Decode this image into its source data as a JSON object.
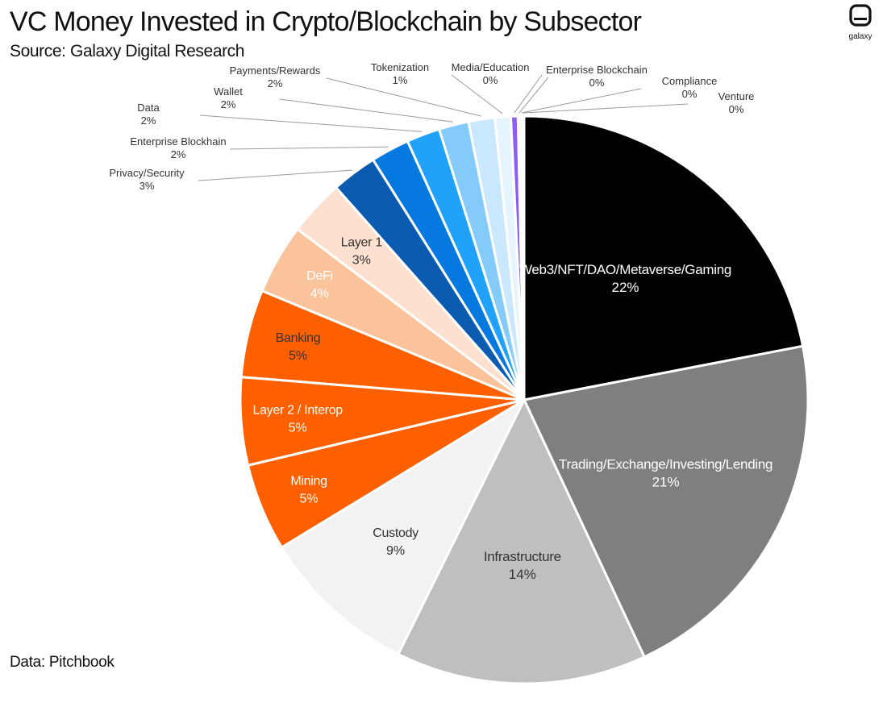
{
  "header": {
    "title": "VC Money Invested in Crypto/Blockchain by Subsector",
    "subtitle": "Source: Galaxy Digital Research"
  },
  "footer": {
    "note": "Data: Pitchbook"
  },
  "logo": {
    "text": "galaxy",
    "icon": "galaxy-logo-icon"
  },
  "chart_data": {
    "type": "pie",
    "title": "VC Money Invested in Crypto/Blockchain by Subsector",
    "subtitle": "Source: Galaxy Digital Research",
    "start_angle_deg": 0,
    "direction": "clockwise",
    "slices": [
      {
        "label": "Web3/NFT/DAO/Metaverse/Gaming",
        "display": "22%",
        "value": 22.0,
        "color": "#000000",
        "label_color": "#ffffff",
        "label_placement": "inside"
      },
      {
        "label": "Trading/Exchange/Investing/Lending",
        "display": "21%",
        "value": 21.1,
        "color": "#7f7f7f",
        "label_color": "#ffffff",
        "label_placement": "inside"
      },
      {
        "label": "Infrastructure",
        "display": "14%",
        "value": 14.3,
        "color": "#bfbfbf",
        "label_color": "#333333",
        "label_placement": "inside"
      },
      {
        "label": "Custody",
        "display": "9%",
        "value": 9.0,
        "color": "#f2f2f2",
        "label_color": "#333333",
        "label_placement": "inside"
      },
      {
        "label": "Mining",
        "display": "5%",
        "value": 5.0,
        "color": "#fe6000",
        "label_color": "#ffffff",
        "label_placement": "inside"
      },
      {
        "label": "Layer 2 / Interop",
        "display": "5%",
        "value": 5.0,
        "color": "#fe6000",
        "label_color": "#ffffff",
        "label_placement": "inside"
      },
      {
        "label": "Banking",
        "display": "5%",
        "value": 5.0,
        "color": "#fe6000",
        "label_color": "#333333",
        "label_placement": "inside"
      },
      {
        "label": "DeFi",
        "display": "4%",
        "value": 4.0,
        "color": "#fbc39c",
        "label_color": "#ffffff",
        "label_placement": "inside"
      },
      {
        "label": "Layer 1",
        "display": "3%",
        "value": 3.2,
        "color": "#fde0cf",
        "label_color": "#333333",
        "label_placement": "inside"
      },
      {
        "label": "Privacy/Security",
        "display": "3%",
        "value": 2.6,
        "color": "#0b5cb0",
        "label_color": "#333333",
        "label_placement": "outside"
      },
      {
        "label": "Enterprise Blockhain",
        "display": "2%",
        "value": 2.2,
        "color": "#0579df",
        "label_color": "#333333",
        "label_placement": "outside"
      },
      {
        "label": "Data",
        "display": "2%",
        "value": 1.9,
        "color": "#20a2fb",
        "label_color": "#333333",
        "label_placement": "outside"
      },
      {
        "label": "Wallet",
        "display": "2%",
        "value": 1.7,
        "color": "#84cbfa",
        "label_color": "#333333",
        "label_placement": "outside"
      },
      {
        "label": "Payments/Rewards",
        "display": "2%",
        "value": 1.5,
        "color": "#c9e8fd",
        "label_color": "#333333",
        "label_placement": "outside"
      },
      {
        "label": "Tokenization",
        "display": "1%",
        "value": 0.9,
        "color": "#e6f4fe",
        "label_color": "#333333",
        "label_placement": "outside"
      },
      {
        "label": "Media/Education",
        "display": "0%",
        "value": 0.4,
        "color": "#8b5cf6",
        "label_color": "#333333",
        "label_placement": "outside"
      },
      {
        "label": "Enterprise Blockchain",
        "display": "0%",
        "value": 0.15,
        "color": "#cfcfcf",
        "label_color": "#333333",
        "label_placement": "outside"
      },
      {
        "label": "Compliance",
        "display": "0%",
        "value": 0.1,
        "color": "#b8b8b8",
        "label_color": "#333333",
        "label_placement": "outside"
      },
      {
        "label": "Venture",
        "display": "0%",
        "value": 0.1,
        "color": "#e0e0e0",
        "label_color": "#333333",
        "label_placement": "outside"
      }
    ]
  }
}
